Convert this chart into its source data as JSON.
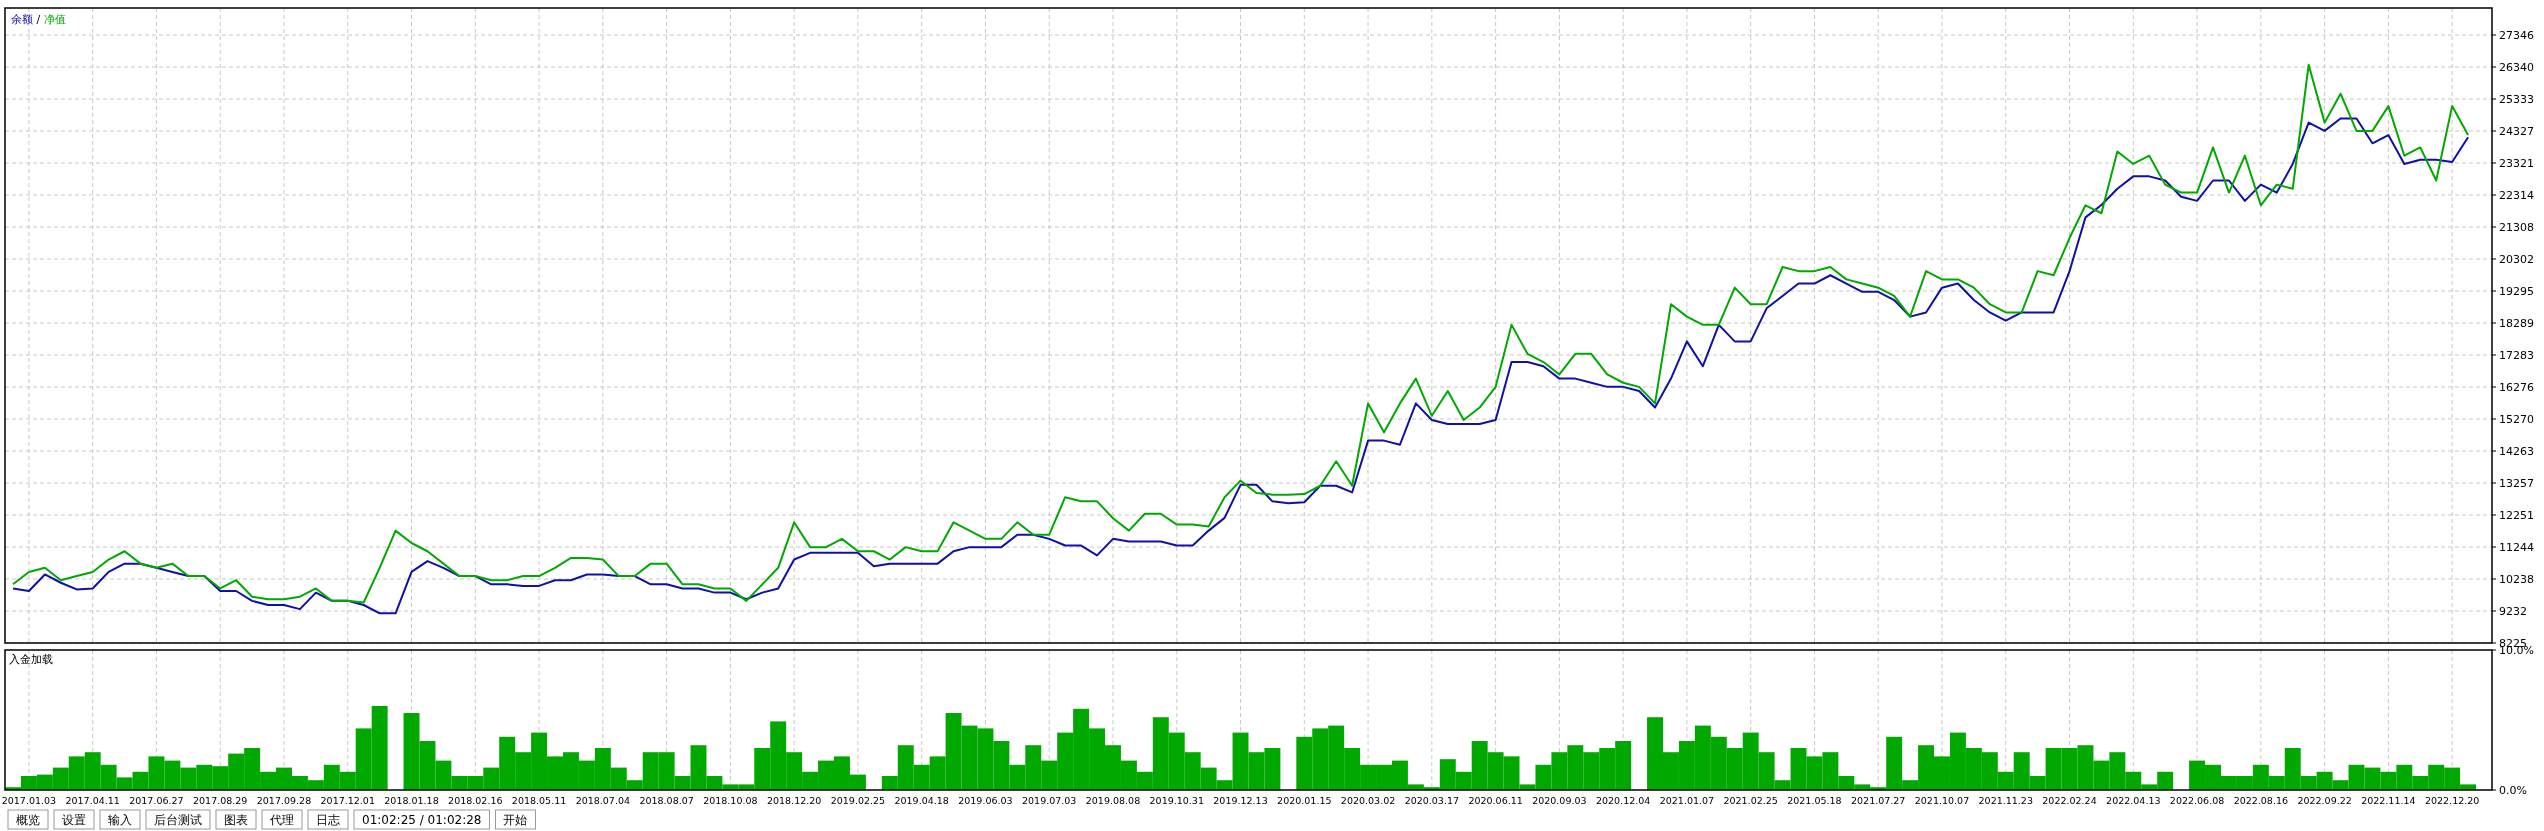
{
  "chart_data": [
    {
      "type": "line",
      "legend": "top left",
      "grid": true,
      "tick_labels": "y",
      "ylim": [
        8225,
        28195
      ],
      "annotations": [
        "/"
      ],
      "yticks": [
        8225,
        9232,
        10238,
        11244,
        12251,
        13257,
        14263,
        15270,
        16276,
        17283,
        18289,
        19295,
        20302,
        21308,
        22314,
        23321,
        24327,
        25333,
        26340,
        27346
      ],
      "categories": [
        null,
        "2017.01.03",
        null,
        null,
        null,
        "2017.04.11",
        null,
        null,
        null,
        "2017.06.27",
        null,
        null,
        null,
        "2017.08.29",
        null,
        null,
        null,
        "2017.09.28",
        null,
        null,
        null,
        "2017.12.01",
        null,
        null,
        null,
        "2018.01.18",
        null,
        null,
        null,
        "2018.02.16",
        null,
        null,
        null,
        "2018.05.11",
        null,
        null,
        null,
        "2018.07.04",
        null,
        null,
        null,
        "2018.08.07",
        null,
        null,
        null,
        "2018.10.08",
        null,
        null,
        null,
        "2018.12.20",
        null,
        null,
        null,
        "2019.02.25",
        null,
        null,
        null,
        "2019.04.18",
        null,
        null,
        null,
        "2019.06.03",
        null,
        null,
        null,
        "2019.07.03",
        null,
        null,
        null,
        "2019.08.08",
        null,
        null,
        null,
        "2019.10.31",
        null,
        null,
        null,
        "2019.12.13",
        null,
        null,
        null,
        "2020.01.15",
        null,
        null,
        null,
        "2020.03.02",
        null,
        null,
        null,
        "2020.03.17",
        null,
        null,
        null,
        "2020.06.11",
        null,
        null,
        null,
        "2020.09.03",
        null,
        null,
        null,
        "2020.12.04",
        null,
        null,
        null,
        "2021.01.07",
        null,
        null,
        null,
        "2021.02.25",
        null,
        null,
        null,
        "2021.05.18",
        null,
        null,
        null,
        "2021.07.27",
        null,
        null,
        null,
        "2021.10.07",
        null,
        null,
        null,
        "2021.11.23",
        null,
        null,
        null,
        "2022.02.24",
        null,
        null,
        null,
        "2022.04.13",
        null,
        null,
        null,
        "2022.06.08",
        null,
        null,
        null,
        "2022.08.16",
        null,
        null,
        null,
        "2022.09.22",
        null,
        null,
        null,
        "2022.11.14",
        null,
        null,
        null,
        "2022.12.20",
        null,
        null
      ],
      "series": [
        {
          "name": "余额",
          "color": "#1010a8",
          "values": [
            9940,
            9860,
            10380,
            10120,
            9910,
            9940,
            10460,
            10720,
            10720,
            10590,
            10460,
            10330,
            10330,
            9860,
            9860,
            9550,
            9420,
            9420,
            9290,
            9810,
            9550,
            9550,
            9420,
            9160,
            9160,
            10460,
            10800,
            10590,
            10330,
            10330,
            10070,
            10070,
            10020,
            10020,
            10200,
            10200,
            10380,
            10380,
            10330,
            10330,
            10070,
            10070,
            9940,
            9940,
            9810,
            9810,
            9600,
            9810,
            9940,
            10850,
            11060,
            11060,
            11060,
            11060,
            10640,
            10720,
            10720,
            10720,
            10720,
            11110,
            11240,
            11240,
            11240,
            11630,
            11630,
            11500,
            11290,
            11290,
            10980,
            11500,
            11420,
            11420,
            11420,
            11290,
            11290,
            11760,
            12160,
            13200,
            13200,
            12680,
            12620,
            12650,
            13170,
            13170,
            12960,
            14590,
            14590,
            14460,
            15760,
            15240,
            15110,
            15110,
            15110,
            15240,
            17060,
            17060,
            16930,
            16540,
            16540,
            16410,
            16280,
            16280,
            16150,
            15630,
            16540,
            17710,
            16930,
            18230,
            17710,
            17710,
            18750,
            19140,
            19530,
            19530,
            19790,
            19530,
            19270,
            19270,
            19010,
            18490,
            18620,
            19400,
            19530,
            19010,
            18620,
            18360,
            18620,
            18620,
            18620,
            19920,
            21610,
            22000,
            22510,
            22900,
            22900,
            22770,
            22260,
            22130,
            22770,
            22770,
            22130,
            22640,
            22390,
            23290,
            24590,
            24330,
            24720,
            24720,
            23940,
            24200,
            23290,
            23420,
            23420,
            23350,
            24130,
            null
          ]
        },
        {
          "name": "净值",
          "color": "#00a800",
          "values": [
            10070,
            10460,
            10590,
            10200,
            10330,
            10460,
            10850,
            11110,
            10720,
            10590,
            10720,
            10330,
            10330,
            9940,
            10200,
            9680,
            9600,
            9600,
            9680,
            9940,
            9550,
            9550,
            9500,
            10590,
            11760,
            11370,
            11110,
            10720,
            10330,
            10330,
            10200,
            10200,
            10330,
            10330,
            10590,
            10900,
            10900,
            10850,
            10330,
            10330,
            10720,
            10720,
            10070,
            10070,
            9940,
            9940,
            9550,
            10070,
            10590,
            12020,
            11240,
            11240,
            11500,
            11110,
            11110,
            10850,
            11240,
            11110,
            11110,
            12020,
            11760,
            11500,
            11500,
            12020,
            11630,
            11630,
            12810,
            12680,
            12680,
            12150,
            11760,
            12290,
            12290,
            11950,
            11950,
            11890,
            12810,
            13330,
            12940,
            12890,
            12890,
            12910,
            13170,
            13940,
            13170,
            15760,
            14850,
            15760,
            16540,
            15370,
            16150,
            15240,
            15630,
            16280,
            18230,
            17320,
            17060,
            16670,
            17320,
            17320,
            16670,
            16410,
            16280,
            15760,
            18880,
            18490,
            18230,
            18230,
            19400,
            18880,
            18880,
            20050,
            19920,
            19920,
            20050,
            19660,
            19530,
            19400,
            19140,
            18490,
            19920,
            19660,
            19660,
            19400,
            18880,
            18620,
            18620,
            19920,
            19790,
            20960,
            21990,
            21740,
            23680,
            23290,
            23550,
            22640,
            22390,
            22390,
            23810,
            22390,
            23550,
            21990,
            22640,
            22510,
            26410,
            24590,
            25500,
            24330,
            24330,
            25110,
            23550,
            23810,
            22770,
            25110,
            24200,
            null
          ]
        }
      ]
    },
    {
      "type": "bar",
      "title": "入金加载",
      "grid": "x",
      "ylim": [
        0,
        10
      ],
      "yticks": [
        {
          "value": 0,
          "label": "0.0%"
        },
        {
          "value": 10,
          "label": "10.0%"
        }
      ],
      "categories": [
        null,
        "2017.01.03",
        null,
        null,
        null,
        "2017.04.11",
        null,
        null,
        null,
        "2017.06.27",
        null,
        null,
        null,
        "2017.08.29",
        null,
        null,
        null,
        "2017.09.28",
        null,
        null,
        null,
        "2017.12.01",
        null,
        null,
        null,
        "2018.01.18",
        null,
        null,
        null,
        "2018.02.16",
        null,
        null,
        null,
        "2018.05.11",
        null,
        null,
        null,
        "2018.07.04",
        null,
        null,
        null,
        "2018.08.07",
        null,
        null,
        null,
        "2018.10.08",
        null,
        null,
        null,
        "2018.12.20",
        null,
        null,
        null,
        "2019.02.25",
        null,
        null,
        null,
        "2019.04.18",
        null,
        null,
        null,
        "2019.06.03",
        null,
        null,
        null,
        "2019.07.03",
        null,
        null,
        null,
        "2019.08.08",
        null,
        null,
        null,
        "2019.10.31",
        null,
        null,
        null,
        "2019.12.13",
        null,
        null,
        null,
        "2020.01.15",
        null,
        null,
        null,
        "2020.03.02",
        null,
        null,
        null,
        "2020.03.17",
        null,
        null,
        null,
        "2020.06.11",
        null,
        null,
        null,
        "2020.09.03",
        null,
        null,
        null,
        "2020.12.04",
        null,
        null,
        null,
        "2021.01.07",
        null,
        null,
        null,
        "2021.02.25",
        null,
        null,
        null,
        "2021.05.18",
        null,
        null,
        null,
        "2021.07.27",
        null,
        null,
        null,
        "2021.10.07",
        null,
        null,
        null,
        "2021.11.23",
        null,
        null,
        null,
        "2022.02.24",
        null,
        null,
        null,
        "2022.04.13",
        null,
        null,
        null,
        "2022.06.08",
        null,
        null,
        null,
        "2022.08.16",
        null,
        null,
        null,
        "2022.09.22",
        null,
        null,
        null,
        "2022.11.14",
        null,
        null,
        null,
        "2022.12.20",
        null,
        null
      ],
      "annotations": [
        "概览",
        "设置",
        "输入",
        "后台测试",
        "图表",
        "代理",
        "日志",
        "01:02:25 / 01:02:28",
        "开始"
      ],
      "series": [
        {
          "color": "#00a800",
          "values": [
            0.2,
            1.0,
            1.1,
            1.6,
            2.4,
            2.7,
            1.8,
            0.9,
            1.3,
            2.4,
            2.1,
            1.6,
            1.8,
            1.7,
            2.6,
            3.0,
            1.3,
            1.6,
            1.0,
            0.7,
            1.8,
            1.3,
            4.4,
            6.0,
            null,
            5.5,
            3.5,
            2.1,
            1.0,
            1.0,
            1.6,
            3.8,
            2.7,
            4.1,
            2.4,
            2.7,
            2.1,
            3.0,
            1.6,
            0.7,
            2.7,
            2.7,
            1.0,
            3.2,
            1.0,
            0.4,
            0.4,
            3.0,
            4.9,
            2.7,
            1.3,
            2.1,
            2.4,
            1.1,
            null,
            1.0,
            3.2,
            1.8,
            2.4,
            5.5,
            4.6,
            4.4,
            3.5,
            1.8,
            3.2,
            2.1,
            4.1,
            5.8,
            4.4,
            3.2,
            2.1,
            1.3,
            5.2,
            4.1,
            2.7,
            1.6,
            0.7,
            4.1,
            2.7,
            3.0,
            null,
            3.8,
            4.4,
            4.6,
            3.0,
            1.8,
            1.8,
            2.1,
            0.4,
            0.2,
            2.2,
            1.3,
            3.5,
            2.7,
            2.4,
            0.4,
            1.8,
            2.7,
            3.2,
            2.7,
            3.0,
            3.5,
            null,
            5.2,
            2.7,
            3.5,
            4.6,
            3.8,
            3.0,
            4.1,
            2.7,
            0.7,
            3.0,
            2.4,
            2.7,
            1.0,
            0.4,
            0.2,
            3.8,
            0.7,
            3.2,
            2.4,
            4.1,
            3.0,
            2.7,
            1.3,
            2.7,
            1.0,
            3.0,
            3.0,
            3.2,
            2.1,
            2.7,
            1.3,
            0.4,
            1.3,
            null,
            2.1,
            1.8,
            1.0,
            1.0,
            1.8,
            1.0,
            3.0,
            1.0,
            1.3,
            0.7,
            1.8,
            1.6,
            1.3,
            1.8,
            1.0,
            1.8,
            1.6,
            0.4,
            null
          ]
        }
      ]
    }
  ]
}
